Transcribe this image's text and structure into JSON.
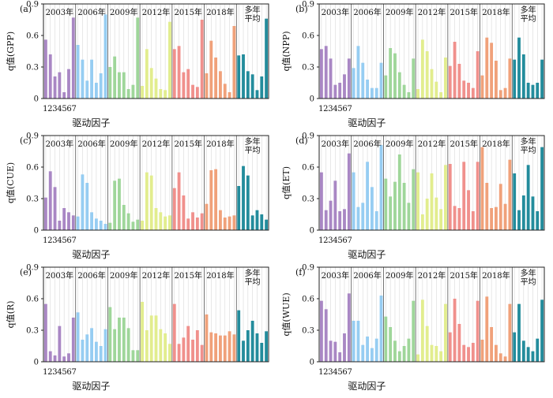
{
  "figure": {
    "xlabel": "驱动因子",
    "group_labels": [
      "2003年",
      "2006年",
      "2009年",
      "2012年",
      "2015年",
      "2018年",
      "多年\n平均"
    ],
    "colors": [
      "#a987c4",
      "#96cdf2",
      "#9fd69a",
      "#e2ed8e",
      "#f0908c",
      "#f0a17a",
      "#238c9c"
    ],
    "category_labels": [
      "1",
      "2",
      "3",
      "4",
      "5",
      "6",
      "7"
    ]
  },
  "chart_data": [
    {
      "type": "bar",
      "panel_label": "(a)",
      "ylabel": "q值(GPP)",
      "ylim": [
        0,
        0.9
      ],
      "yticks": [
        0,
        0.3,
        0.6,
        0.9
      ],
      "categories": [
        "1",
        "2",
        "3",
        "4",
        "5",
        "6",
        "7"
      ],
      "series": [
        {
          "name": "2003年",
          "values": [
            0.56,
            0.42,
            0.21,
            0.25,
            0.06,
            0.28,
            0.77
          ]
        },
        {
          "name": "2006年",
          "values": [
            0.51,
            0.37,
            0.17,
            0.37,
            0.15,
            0.24,
            0.8
          ]
        },
        {
          "name": "2009年",
          "values": [
            0.3,
            0.4,
            0.25,
            0.25,
            0.09,
            0.13,
            0.77
          ]
        },
        {
          "name": "2012年",
          "values": [
            0.12,
            0.47,
            0.29,
            0.19,
            0.09,
            0.08,
            0.73
          ]
        },
        {
          "name": "2015年",
          "values": [
            0.47,
            0.5,
            0.25,
            0.28,
            0.13,
            0.11,
            0.75
          ]
        },
        {
          "name": "2018年",
          "values": [
            0.24,
            0.55,
            0.39,
            0.26,
            0.14,
            0.06,
            0.69
          ]
        },
        {
          "name": "多年平均",
          "values": [
            0.41,
            0.42,
            0.26,
            0.23,
            0.08,
            0.21,
            0.76
          ]
        }
      ]
    },
    {
      "type": "bar",
      "panel_label": "(b)",
      "ylabel": "q值(NPP)",
      "ylim": [
        0,
        0.9
      ],
      "yticks": [
        0,
        0.3,
        0.6,
        0.9
      ],
      "categories": [
        "1",
        "2",
        "3",
        "4",
        "5",
        "6",
        "7"
      ],
      "series": [
        {
          "name": "2003年",
          "values": [
            0.47,
            0.5,
            0.38,
            0.13,
            0.15,
            0.23,
            0.38
          ]
        },
        {
          "name": "2006年",
          "values": [
            0.29,
            0.5,
            0.34,
            0.18,
            0.1,
            0.1,
            0.34
          ]
        },
        {
          "name": "2009年",
          "values": [
            0.22,
            0.48,
            0.43,
            0.25,
            0.13,
            0.06,
            0.38
          ]
        },
        {
          "name": "2012年",
          "values": [
            0.09,
            0.56,
            0.45,
            0.28,
            0.16,
            0.06,
            0.39
          ]
        },
        {
          "name": "2015年",
          "values": [
            0.31,
            0.54,
            0.33,
            0.17,
            0.15,
            0.1,
            0.45
          ]
        },
        {
          "name": "2018年",
          "values": [
            0.22,
            0.58,
            0.53,
            0.36,
            0.08,
            0.1,
            0.38
          ]
        },
        {
          "name": "多年平均",
          "values": [
            0.37,
            0.58,
            0.42,
            0.15,
            0.13,
            0.15,
            0.37
          ]
        }
      ]
    },
    {
      "type": "bar",
      "panel_label": "(c)",
      "ylabel": "q值(CUE)",
      "ylim": [
        0,
        0.9
      ],
      "yticks": [
        0,
        0.3,
        0.6,
        0.9
      ],
      "categories": [
        "1",
        "2",
        "3",
        "4",
        "5",
        "6",
        "7"
      ],
      "series": [
        {
          "name": "2003年",
          "values": [
            0.31,
            0.56,
            0.41,
            0.09,
            0.21,
            0.17,
            0.14
          ]
        },
        {
          "name": "2006年",
          "values": [
            0.13,
            0.53,
            0.45,
            0.17,
            0.11,
            0.09,
            0.06
          ]
        },
        {
          "name": "2009年",
          "values": [
            0.07,
            0.47,
            0.49,
            0.24,
            0.16,
            0.08,
            0.1
          ]
        },
        {
          "name": "2012年",
          "values": [
            0.09,
            0.55,
            0.52,
            0.21,
            0.17,
            0.13,
            0.14
          ]
        },
        {
          "name": "2015年",
          "values": [
            0.4,
            0.55,
            0.33,
            0.11,
            0.17,
            0.12,
            0.16
          ]
        },
        {
          "name": "2018年",
          "values": [
            0.25,
            0.57,
            0.58,
            0.19,
            0.12,
            0.13,
            0.14
          ]
        },
        {
          "name": "多年平均",
          "values": [
            0.42,
            0.61,
            0.52,
            0.14,
            0.19,
            0.15,
            0.1
          ]
        }
      ]
    },
    {
      "type": "bar",
      "panel_label": "(d)",
      "ylabel": "q值(ET)",
      "ylim": [
        0,
        0.9
      ],
      "yticks": [
        0,
        0.3,
        0.6,
        0.9
      ],
      "categories": [
        "1",
        "2",
        "3",
        "4",
        "5",
        "6",
        "7"
      ],
      "series": [
        {
          "name": "2003年",
          "values": [
            0.55,
            0.19,
            0.28,
            0.47,
            0.18,
            0.2,
            0.73
          ]
        },
        {
          "name": "2006年",
          "values": [
            0.55,
            0.22,
            0.26,
            0.65,
            0.41,
            0.18,
            0.81
          ]
        },
        {
          "name": "2009年",
          "values": [
            0.49,
            0.32,
            0.46,
            0.72,
            0.45,
            0.26,
            0.58
          ]
        },
        {
          "name": "2012年",
          "values": [
            0.55,
            0.15,
            0.3,
            0.54,
            0.31,
            0.2,
            0.62
          ]
        },
        {
          "name": "2015年",
          "values": [
            0.63,
            0.23,
            0.21,
            0.65,
            0.38,
            0.18,
            0.65
          ]
        },
        {
          "name": "2018年",
          "values": [
            0.79,
            0.45,
            0.21,
            0.22,
            0.44,
            0.25,
            0.67
          ]
        },
        {
          "name": "多年平均",
          "values": [
            0.54,
            0.19,
            0.33,
            0.62,
            0.32,
            0.18,
            0.79
          ]
        }
      ]
    },
    {
      "type": "bar",
      "panel_label": "(e)",
      "ylabel": "q值(R)",
      "ylim": [
        0,
        0.9
      ],
      "yticks": [
        0,
        0.3,
        0.6,
        0.9
      ],
      "categories": [
        "1",
        "2",
        "3",
        "4",
        "5",
        "6",
        "7"
      ],
      "series": [
        {
          "name": "2003年",
          "values": [
            0.55,
            0.1,
            0.06,
            0.34,
            0.05,
            0.08,
            0.42
          ]
        },
        {
          "name": "2006年",
          "values": [
            0.47,
            0.21,
            0.26,
            0.32,
            0.19,
            0.15,
            0.31
          ]
        },
        {
          "name": "2009年",
          "values": [
            0.52,
            0.31,
            0.42,
            0.42,
            0.32,
            0.11,
            0.11
          ]
        },
        {
          "name": "2012年",
          "values": [
            0.57,
            0.3,
            0.44,
            0.44,
            0.31,
            0.27,
            0.17
          ]
        },
        {
          "name": "2015年",
          "values": [
            0.55,
            0.17,
            0.23,
            0.34,
            0.21,
            0.3,
            0.16
          ]
        },
        {
          "name": "2018年",
          "values": [
            0.45,
            0.28,
            0.27,
            0.25,
            0.25,
            0.29,
            0.26
          ]
        },
        {
          "name": "多年平均",
          "values": [
            0.49,
            0.2,
            0.3,
            0.39,
            0.27,
            0.18,
            0.29
          ]
        }
      ]
    },
    {
      "type": "bar",
      "panel_label": "(f)",
      "ylabel": "q值(WUE)",
      "ylim": [
        0,
        0.9
      ],
      "yticks": [
        0,
        0.3,
        0.6,
        0.9
      ],
      "categories": [
        "1",
        "2",
        "3",
        "4",
        "5",
        "6",
        "7"
      ],
      "series": [
        {
          "name": "2003年",
          "values": [
            0.58,
            0.5,
            0.2,
            0.19,
            0.09,
            0.27,
            0.65
          ]
        },
        {
          "name": "2006年",
          "values": [
            0.39,
            0.39,
            0.16,
            0.24,
            0.13,
            0.22,
            0.63
          ]
        },
        {
          "name": "2009年",
          "values": [
            0.43,
            0.33,
            0.2,
            0.1,
            0.15,
            0.22,
            0.58
          ]
        },
        {
          "name": "2012年",
          "values": [
            0.07,
            0.59,
            0.34,
            0.16,
            0.15,
            0.1,
            0.55
          ]
        },
        {
          "name": "2015年",
          "values": [
            0.28,
            0.6,
            0.36,
            0.16,
            0.14,
            0.18,
            0.58
          ]
        },
        {
          "name": "2018年",
          "values": [
            0.21,
            0.62,
            0.33,
            0.16,
            0.08,
            0.05,
            0.55
          ]
        },
        {
          "name": "多年平均",
          "values": [
            0.28,
            0.55,
            0.2,
            0.14,
            0.1,
            0.22,
            0.59
          ]
        }
      ]
    }
  ]
}
